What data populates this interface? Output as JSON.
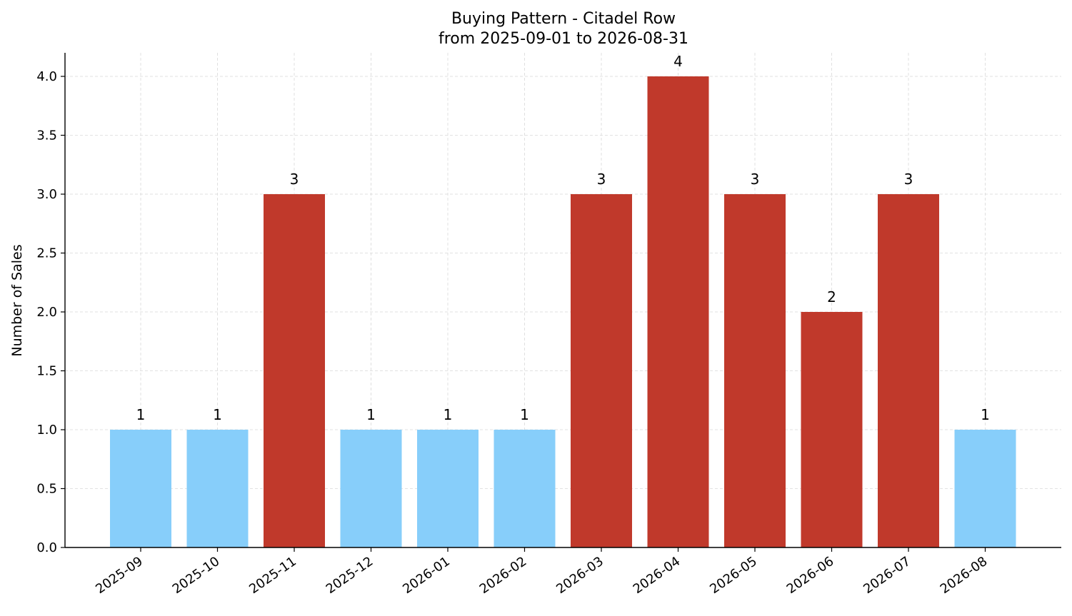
{
  "chart_data": {
    "type": "bar",
    "title": "Buying Pattern - Citadel Row",
    "subtitle": "from 2025-09-01 to 2026-08-31",
    "xlabel": "",
    "ylabel": "Number of Sales",
    "categories": [
      "2025-09",
      "2025-10",
      "2025-11",
      "2025-12",
      "2026-01",
      "2026-02",
      "2026-03",
      "2026-04",
      "2026-05",
      "2026-06",
      "2026-07",
      "2026-08"
    ],
    "values": [
      1,
      1,
      3,
      1,
      1,
      1,
      3,
      4,
      3,
      2,
      3,
      1
    ],
    "data_labels": [
      "1",
      "1",
      "3",
      "1",
      "1",
      "1",
      "3",
      "4",
      "3",
      "2",
      "3",
      "1"
    ],
    "ylim": [
      0,
      4.2
    ],
    "yticks": [
      0.0,
      0.5,
      1.0,
      1.5,
      2.0,
      2.5,
      3.0,
      3.5,
      4.0
    ],
    "ytick_labels": [
      "0.0",
      "0.5",
      "1.0",
      "1.5",
      "2.0",
      "2.5",
      "3.0",
      "3.5",
      "4.0"
    ],
    "grid": true,
    "colors": {
      "low": "#87CEFA",
      "high": "#C0392B"
    },
    "high_threshold": 2
  }
}
